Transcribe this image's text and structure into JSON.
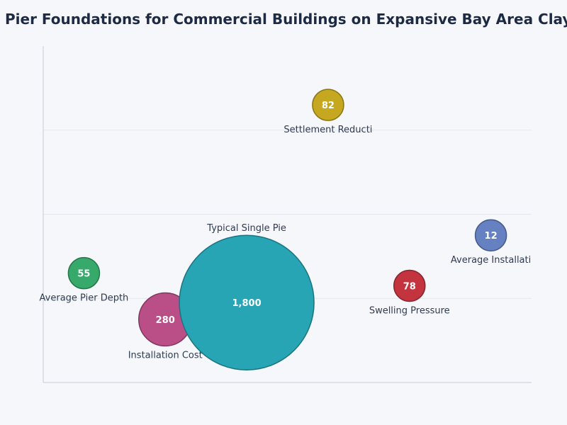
{
  "chart_data": {
    "type": "scatter",
    "title": "ed Pier Foundations for Commercial Buildings on Expansive Bay Area Clay S",
    "xlabel": "",
    "ylabel": "",
    "xlim": [
      0,
      6
    ],
    "ylim": [
      0,
      4
    ],
    "grid": true,
    "bubbles": [
      {
        "label": "Average Pier Depth",
        "value": 55,
        "display": "55",
        "x": 0.5,
        "y": 1.3,
        "color": "#37a96a"
      },
      {
        "label": "Installation Cost",
        "value": 280,
        "display": "280",
        "x": 1.5,
        "y": 0.75,
        "color": "#b94f86"
      },
      {
        "label": "Typical Single Pie",
        "value": 1800,
        "display": "1,800",
        "x": 2.5,
        "y": 0.95,
        "color": "#27a5b5"
      },
      {
        "label": "Settlement Reducti",
        "value": 82,
        "display": "82",
        "x": 3.5,
        "y": 3.3,
        "color": "#c6a820"
      },
      {
        "label": "Swelling Pressure",
        "value": 78,
        "display": "78",
        "x": 4.5,
        "y": 1.15,
        "color": "#c3343f"
      },
      {
        "label": "Average Installati",
        "value": 12,
        "display": "12",
        "x": 5.5,
        "y": 1.75,
        "color": "#6681c1"
      }
    ]
  }
}
